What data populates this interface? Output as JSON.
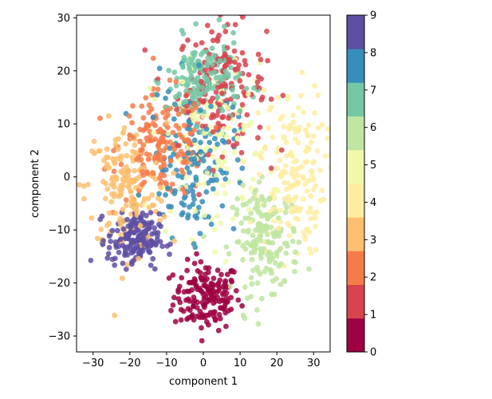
{
  "chart_data": {
    "type": "scatter",
    "xlabel": "component 1",
    "ylabel": "component 2",
    "xlim": [
      -34.5,
      34.5
    ],
    "ylim": [
      -33,
      30.5
    ],
    "xticks": [
      -30,
      -20,
      -10,
      0,
      10,
      20,
      30
    ],
    "yticks": [
      -30,
      -20,
      -10,
      0,
      10,
      20,
      30
    ],
    "grid": false,
    "colorbar": {
      "min": 0,
      "max": 9,
      "ticks": [
        0,
        1,
        2,
        3,
        4,
        5,
        6,
        7,
        8,
        9
      ],
      "colors": [
        "#9e0142",
        "#d8434e",
        "#f67b4a",
        "#fdbf6f",
        "#feeda1",
        "#f1f9a9",
        "#bfe5a0",
        "#74c7a5",
        "#378ebb",
        "#5e4fa2"
      ]
    },
    "clusters": [
      {
        "digit": 0,
        "color": "#9e0142",
        "cx": 1,
        "cy": -22.5,
        "sx": 4.5,
        "sy": 3.2,
        "n": 170
      },
      {
        "digit": 1,
        "color": "#d8434e",
        "cx": 5,
        "cy": 17,
        "sx": 6,
        "sy": 6,
        "n": 170
      },
      {
        "digit": 2,
        "color": "#f67b4a",
        "cx": -11,
        "cy": 6,
        "sx": 6,
        "sy": 5,
        "n": 170
      },
      {
        "digit": 3,
        "color": "#fdbf6f",
        "cx": -21,
        "cy": -2,
        "sx": 5.5,
        "sy": 6,
        "n": 170
      },
      {
        "digit": 4,
        "color": "#feeda1",
        "cx": 24,
        "cy": 1,
        "sx": 4.5,
        "sy": 8,
        "n": 170
      },
      {
        "digit": 5,
        "color": "#f1f9a9",
        "cx": 2,
        "cy": 5,
        "sx": 8,
        "sy": 8,
        "n": 140
      },
      {
        "digit": 6,
        "color": "#bfe5a0",
        "cx": 17,
        "cy": -12,
        "sx": 4.5,
        "sy": 5,
        "n": 170
      },
      {
        "digit": 7,
        "color": "#74c7a5",
        "cx": 0,
        "cy": 18,
        "sx": 5,
        "sy": 4,
        "n": 170
      },
      {
        "digit": 8,
        "color": "#378ebb",
        "cx": -3,
        "cy": 3,
        "sx": 6,
        "sy": 7,
        "n": 150
      },
      {
        "digit": 9,
        "color": "#5e4fa2",
        "cx": -19,
        "cy": -12,
        "sx": 3.5,
        "sy": 2.5,
        "n": 170
      }
    ]
  }
}
